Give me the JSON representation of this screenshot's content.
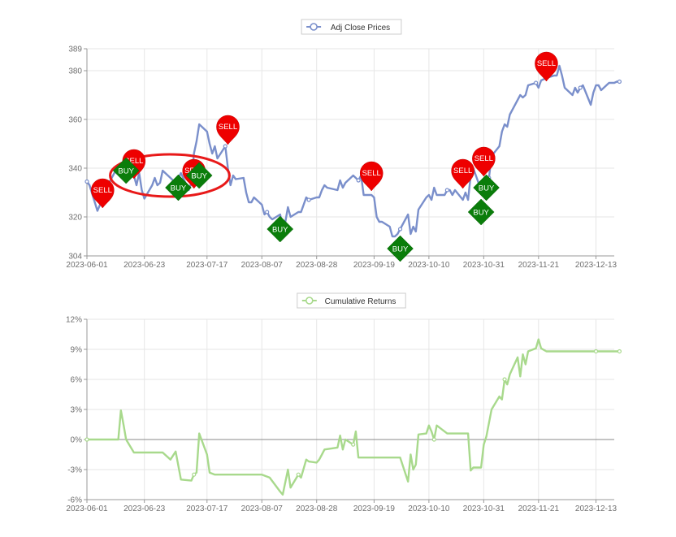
{
  "chart_data": [
    {
      "type": "line",
      "legend": "Adj Close Prices",
      "legend_position": "top-center",
      "grid": true,
      "line_color": "#7a8fcb",
      "ylim": [
        304,
        389
      ],
      "yticks": [
        "389",
        "380",
        "360",
        "340",
        "320",
        "304"
      ],
      "ytick_values": [
        389,
        380,
        360,
        340,
        320,
        304
      ],
      "xlim": [
        "2023-06-01",
        "2023-12-20"
      ],
      "xticks": [
        "2023-06-01",
        "2023-06-23",
        "2023-07-17",
        "2023-08-07",
        "2023-08-28",
        "2023-09-19",
        "2023-10-10",
        "2023-10-31",
        "2023-11-21",
        "2023-12-13"
      ],
      "series": [
        {
          "values": [
            [
              "2023-06-01",
              334.5
            ],
            [
              "2023-06-02",
              333
            ],
            [
              "2023-06-05",
              322.5
            ],
            [
              "2023-06-06",
              325
            ],
            [
              "2023-06-07",
              326
            ],
            [
              "2023-06-08",
              330
            ],
            [
              "2023-06-09",
              333
            ],
            [
              "2023-06-12",
              339
            ],
            [
              "2023-06-13",
              341
            ],
            [
              "2023-06-14",
              339
            ],
            [
              "2023-06-15",
              338
            ],
            [
              "2023-06-16",
              340
            ],
            [
              "2023-06-19",
              337
            ],
            [
              "2023-06-20",
              333
            ],
            [
              "2023-06-21",
              338
            ],
            [
              "2023-06-22",
              331
            ],
            [
              "2023-06-23",
              327.5
            ],
            [
              "2023-06-26",
              333
            ],
            [
              "2023-06-27",
              336
            ],
            [
              "2023-06-28",
              333
            ],
            [
              "2023-06-29",
              334
            ],
            [
              "2023-06-30",
              339
            ],
            [
              "2023-07-03",
              336
            ],
            [
              "2023-07-05",
              334
            ],
            [
              "2023-07-06",
              336
            ],
            [
              "2023-07-07",
              338
            ],
            [
              "2023-07-10",
              331
            ],
            [
              "2023-07-11",
              334
            ],
            [
              "2023-07-12",
              346
            ],
            [
              "2023-07-13",
              351
            ],
            [
              "2023-07-14",
              358
            ],
            [
              "2023-07-17",
              355
            ],
            [
              "2023-07-18",
              350
            ],
            [
              "2023-07-19",
              346
            ],
            [
              "2023-07-20",
              349
            ],
            [
              "2023-07-21",
              344
            ],
            [
              "2023-07-24",
              349
            ],
            [
              "2023-07-25",
              340
            ],
            [
              "2023-07-26",
              333
            ],
            [
              "2023-07-27",
              337
            ],
            [
              "2023-07-28",
              335.5
            ],
            [
              "2023-07-31",
              336
            ],
            [
              "2023-08-01",
              330
            ],
            [
              "2023-08-02",
              326
            ],
            [
              "2023-08-03",
              326
            ],
            [
              "2023-08-04",
              328
            ],
            [
              "2023-08-07",
              325
            ],
            [
              "2023-08-08",
              321
            ],
            [
              "2023-08-09",
              322
            ],
            [
              "2023-08-10",
              320
            ],
            [
              "2023-08-11",
              319
            ],
            [
              "2023-08-14",
              321
            ],
            [
              "2023-08-15",
              316
            ],
            [
              "2023-08-16",
              318
            ],
            [
              "2023-08-17",
              324
            ],
            [
              "2023-08-18",
              320
            ],
            [
              "2023-08-21",
              322
            ],
            [
              "2023-08-22",
              322
            ],
            [
              "2023-08-23",
              325
            ],
            [
              "2023-08-24",
              328
            ],
            [
              "2023-08-25",
              327
            ],
            [
              "2023-08-28",
              328
            ],
            [
              "2023-08-29",
              328
            ],
            [
              "2023-08-30",
              331
            ],
            [
              "2023-08-31",
              333
            ],
            [
              "2023-09-01",
              332
            ],
            [
              "2023-09-05",
              331
            ],
            [
              "2023-09-06",
              335
            ],
            [
              "2023-09-07",
              332
            ],
            [
              "2023-09-08",
              334
            ],
            [
              "2023-09-11",
              337
            ],
            [
              "2023-09-12",
              336
            ],
            [
              "2023-09-13",
              335
            ],
            [
              "2023-09-14",
              337
            ],
            [
              "2023-09-15",
              329
            ],
            [
              "2023-09-18",
              329
            ],
            [
              "2023-09-19",
              328
            ],
            [
              "2023-09-20",
              320
            ],
            [
              "2023-09-21",
              318
            ],
            [
              "2023-09-22",
              318
            ],
            [
              "2023-09-25",
              316
            ],
            [
              "2023-09-26",
              312
            ],
            [
              "2023-09-27",
              312
            ],
            [
              "2023-09-28",
              313
            ],
            [
              "2023-09-29",
              315
            ],
            [
              "2023-10-02",
              321
            ],
            [
              "2023-10-03",
              313
            ],
            [
              "2023-10-04",
              316
            ],
            [
              "2023-10-05",
              314
            ],
            [
              "2023-10-06",
              323
            ],
            [
              "2023-10-09",
              328
            ],
            [
              "2023-10-10",
              329
            ],
            [
              "2023-10-11",
              327
            ],
            [
              "2023-10-12",
              332
            ],
            [
              "2023-10-13",
              329
            ],
            [
              "2023-10-16",
              329
            ],
            [
              "2023-10-17",
              331
            ],
            [
              "2023-10-18",
              331
            ],
            [
              "2023-10-19",
              329
            ],
            [
              "2023-10-20",
              331
            ],
            [
              "2023-10-23",
              327
            ],
            [
              "2023-10-24",
              330
            ],
            [
              "2023-10-25",
              327
            ],
            [
              "2023-10-26",
              337
            ],
            [
              "2023-10-27",
              340
            ],
            [
              "2023-10-30",
              331
            ],
            [
              "2023-10-31",
              330
            ],
            [
              "2023-11-01",
              333
            ],
            [
              "2023-11-02",
              336
            ],
            [
              "2023-11-03",
              345
            ],
            [
              "2023-11-06",
              349
            ],
            [
              "2023-11-07",
              355
            ],
            [
              "2023-11-08",
              358
            ],
            [
              "2023-11-09",
              357
            ],
            [
              "2023-11-10",
              362
            ],
            [
              "2023-11-13",
              368
            ],
            [
              "2023-11-14",
              370
            ],
            [
              "2023-11-15",
              369
            ],
            [
              "2023-11-16",
              370
            ],
            [
              "2023-11-17",
              374
            ],
            [
              "2023-11-20",
              375
            ],
            [
              "2023-11-21",
              373
            ],
            [
              "2023-11-22",
              376
            ],
            [
              "2023-11-24",
              377
            ],
            [
              "2023-11-27",
              378
            ],
            [
              "2023-11-28",
              378
            ],
            [
              "2023-11-29",
              382
            ],
            [
              "2023-11-30",
              378
            ],
            [
              "2023-12-01",
              373
            ],
            [
              "2023-12-04",
              370
            ],
            [
              "2023-12-05",
              373
            ],
            [
              "2023-12-06",
              371
            ],
            [
              "2023-12-07",
              373
            ],
            [
              "2023-12-08",
              374
            ],
            [
              "2023-12-11",
              366
            ],
            [
              "2023-12-12",
              371
            ],
            [
              "2023-12-13",
              374
            ],
            [
              "2023-12-14",
              374
            ],
            [
              "2023-12-15",
              372
            ],
            [
              "2023-12-18",
              375
            ],
            [
              "2023-12-19",
              375
            ],
            [
              "2023-12-20",
              375
            ],
            [
              "2023-12-21",
              375.5
            ],
            [
              "2023-12-22",
              375.5
            ]
          ]
        }
      ],
      "signals": [
        {
          "label": "SELL",
          "date": "2023-06-07",
          "value": 329
        },
        {
          "label": "SELL",
          "date": "2023-06-19",
          "value": 341
        },
        {
          "label": "BUY",
          "date": "2023-06-16",
          "value": 339
        },
        {
          "label": "BUY",
          "date": "2023-07-06",
          "value": 332
        },
        {
          "label": "SELL",
          "date": "2023-07-12",
          "value": 337
        },
        {
          "label": "BUY",
          "date": "2023-07-14",
          "value": 337
        },
        {
          "label": "SELL",
          "date": "2023-07-25",
          "value": 355
        },
        {
          "label": "BUY",
          "date": "2023-08-14",
          "value": 315
        },
        {
          "label": "SELL",
          "date": "2023-09-18",
          "value": 336
        },
        {
          "label": "BUY",
          "date": "2023-09-29",
          "value": 307
        },
        {
          "label": "SELL",
          "date": "2023-10-23",
          "value": 337
        },
        {
          "label": "BUY",
          "date": "2023-10-30",
          "value": 322
        },
        {
          "label": "SELL",
          "date": "2023-10-31",
          "value": 342
        },
        {
          "label": "BUY",
          "date": "2023-11-01",
          "value": 332
        },
        {
          "label": "SELL",
          "date": "2023-11-24",
          "value": 381
        }
      ],
      "annotation": {
        "shape": "ellipse",
        "color": "#e81919",
        "around_dates": [
          "2023-06-13",
          "2023-07-20"
        ]
      }
    },
    {
      "type": "line",
      "legend": "Cumulative Returns",
      "legend_position": "top-center",
      "grid": true,
      "line_color": "#a8d98c",
      "ylim": [
        -6,
        12
      ],
      "yticks": [
        "12%",
        "9%",
        "6%",
        "3%",
        "0%",
        "-3%",
        "-6%"
      ],
      "ytick_values": [
        12,
        9,
        6,
        3,
        0,
        -3,
        -6
      ],
      "xlim": [
        "2023-06-01",
        "2023-12-20"
      ],
      "xticks": [
        "2023-06-01",
        "2023-06-23",
        "2023-07-17",
        "2023-08-07",
        "2023-08-28",
        "2023-09-19",
        "2023-10-10",
        "2023-10-31",
        "2023-11-21",
        "2023-12-13"
      ],
      "series": [
        {
          "values": [
            [
              "2023-06-01",
              0
            ],
            [
              "2023-06-13",
              0
            ],
            [
              "2023-06-14",
              2.9
            ],
            [
              "2023-06-15",
              1.5
            ],
            [
              "2023-06-16",
              0
            ],
            [
              "2023-06-19",
              -1.3
            ],
            [
              "2023-06-23",
              -1.3
            ],
            [
              "2023-06-30",
              -1.3
            ],
            [
              "2023-07-03",
              -2
            ],
            [
              "2023-07-05",
              -1.2
            ],
            [
              "2023-07-07",
              -4
            ],
            [
              "2023-07-11",
              -4.1
            ],
            [
              "2023-07-12",
              -3.5
            ],
            [
              "2023-07-13",
              -3.3
            ],
            [
              "2023-07-14",
              0.6
            ],
            [
              "2023-07-17",
              -1.5
            ],
            [
              "2023-07-18",
              -3.3
            ],
            [
              "2023-07-20",
              -3.5
            ],
            [
              "2023-08-07",
              -3.5
            ],
            [
              "2023-08-10",
              -3.8
            ],
            [
              "2023-08-14",
              -5.2
            ],
            [
              "2023-08-15",
              -5.5
            ],
            [
              "2023-08-17",
              -3
            ],
            [
              "2023-08-18",
              -4.8
            ],
            [
              "2023-08-21",
              -3.5
            ],
            [
              "2023-08-22",
              -3.8
            ],
            [
              "2023-08-24",
              -2
            ],
            [
              "2023-08-25",
              -2.2
            ],
            [
              "2023-08-28",
              -2.3
            ],
            [
              "2023-08-29",
              -2
            ],
            [
              "2023-08-30",
              -1.5
            ],
            [
              "2023-08-31",
              -1
            ],
            [
              "2023-09-05",
              -0.8
            ],
            [
              "2023-09-06",
              0.4
            ],
            [
              "2023-09-07",
              -1
            ],
            [
              "2023-09-08",
              0
            ],
            [
              "2023-09-11",
              -0.5
            ],
            [
              "2023-09-12",
              0.8
            ],
            [
              "2023-09-13",
              -1.8
            ],
            [
              "2023-09-29",
              -1.8
            ],
            [
              "2023-10-02",
              -4.2
            ],
            [
              "2023-10-03",
              -1.5
            ],
            [
              "2023-10-04",
              -3
            ],
            [
              "2023-10-05",
              -2.5
            ],
            [
              "2023-10-06",
              0.5
            ],
            [
              "2023-10-09",
              0.6
            ],
            [
              "2023-10-10",
              1.4
            ],
            [
              "2023-10-11",
              0.8
            ],
            [
              "2023-10-12",
              0
            ],
            [
              "2023-10-13",
              1.4
            ],
            [
              "2023-10-17",
              0.6
            ],
            [
              "2023-10-25",
              0.6
            ],
            [
              "2023-10-26",
              -3.1
            ],
            [
              "2023-10-27",
              -2.8
            ],
            [
              "2023-10-30",
              -2.8
            ],
            [
              "2023-10-31",
              -0.5
            ],
            [
              "2023-11-01",
              0.3
            ],
            [
              "2023-11-03",
              3
            ],
            [
              "2023-11-06",
              4.3
            ],
            [
              "2023-11-07",
              4
            ],
            [
              "2023-11-08",
              6
            ],
            [
              "2023-11-09",
              5.5
            ],
            [
              "2023-11-10",
              6.5
            ],
            [
              "2023-11-13",
              8.2
            ],
            [
              "2023-11-14",
              6.3
            ],
            [
              "2023-11-15",
              8.5
            ],
            [
              "2023-11-16",
              7.5
            ],
            [
              "2023-11-17",
              8.8
            ],
            [
              "2023-11-20",
              9.1
            ],
            [
              "2023-11-21",
              10
            ],
            [
              "2023-11-22",
              9.1
            ],
            [
              "2023-11-24",
              8.8
            ],
            [
              "2023-12-13",
              8.8
            ],
            [
              "2023-12-22",
              8.8
            ]
          ]
        }
      ]
    }
  ]
}
